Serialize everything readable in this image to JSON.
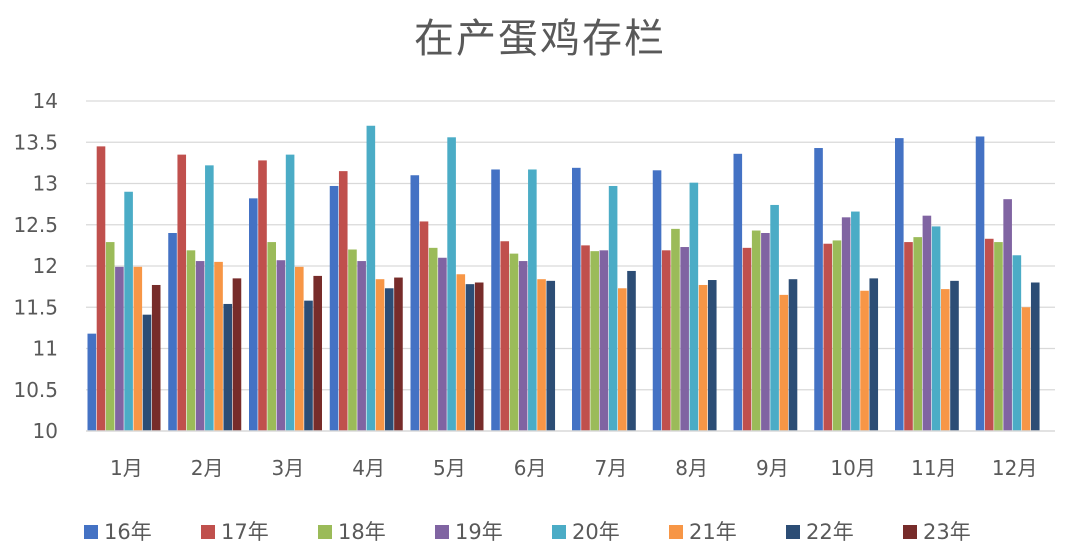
{
  "chart_data": {
    "type": "bar",
    "title": "在产蛋鸡存栏",
    "xlabel": "",
    "ylabel": "",
    "ylim": [
      10,
      14
    ],
    "yticks": [
      "10",
      "10.5",
      "11",
      "11.5",
      "12",
      "12.5",
      "13",
      "13.5",
      "14"
    ],
    "grid": true,
    "legend_position": "bottom",
    "categories": [
      "1月",
      "2月",
      "3月",
      "4月",
      "5月",
      "6月",
      "7月",
      "8月",
      "9月",
      "10月",
      "11月",
      "12月"
    ],
    "series": [
      {
        "name": "16年",
        "color": "#4472C4",
        "values": [
          11.18,
          12.4,
          12.82,
          12.97,
          13.1,
          13.17,
          13.19,
          13.16,
          13.36,
          13.43,
          13.55,
          13.57
        ]
      },
      {
        "name": "17年",
        "color": "#C0504D",
        "values": [
          13.45,
          13.35,
          13.28,
          13.15,
          12.54,
          12.3,
          12.25,
          12.19,
          12.22,
          12.27,
          12.29,
          12.33
        ]
      },
      {
        "name": "18年",
        "color": "#9BBB59",
        "values": [
          12.29,
          12.19,
          12.29,
          12.2,
          12.22,
          12.15,
          12.18,
          12.45,
          12.43,
          12.31,
          12.35,
          12.29
        ]
      },
      {
        "name": "19年",
        "color": "#8064A2",
        "values": [
          11.99,
          12.06,
          12.07,
          12.06,
          12.1,
          12.06,
          12.19,
          12.23,
          12.4,
          12.59,
          12.61,
          12.81
        ]
      },
      {
        "name": "20年",
        "color": "#4BACC6",
        "values": [
          12.9,
          13.22,
          13.35,
          13.7,
          13.56,
          13.17,
          12.97,
          13.01,
          12.74,
          12.66,
          12.48,
          12.13
        ]
      },
      {
        "name": "21年",
        "color": "#F79646",
        "values": [
          11.99,
          12.05,
          11.99,
          11.84,
          11.9,
          11.84,
          11.73,
          11.77,
          11.65,
          11.7,
          11.72,
          11.5
        ]
      },
      {
        "name": "22年",
        "color": "#2C4D75",
        "values": [
          11.41,
          11.54,
          11.58,
          11.73,
          11.78,
          11.82,
          11.94,
          11.83,
          11.84,
          11.85,
          11.82,
          11.8
        ]
      },
      {
        "name": "23年",
        "color": "#772C2A",
        "values": [
          11.77,
          11.85,
          11.88,
          11.86,
          11.8,
          null,
          null,
          null,
          null,
          null,
          null,
          null
        ]
      }
    ]
  }
}
